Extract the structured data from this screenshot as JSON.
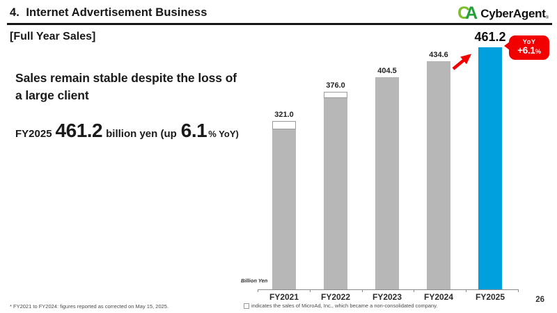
{
  "header": {
    "title": "4.  Internet Advertisement Business",
    "logo_c": "C",
    "logo_a": "A",
    "logo_text": "CyberAgent",
    "logo_reg": "®"
  },
  "left": {
    "section_label": "[Full Year Sales]",
    "headline_line1": "Sales remain stable despite the loss of",
    "headline_line2": "a large client",
    "stat": {
      "prefix": "FY2025",
      "value": "461.2",
      "mid": "billion yen (up",
      "pct": "6.1",
      "suffix": "% YoY)"
    }
  },
  "chart_data": {
    "type": "bar",
    "title": "Full Year Sales",
    "unit_label": "Billion Yen",
    "categories": [
      "FY2021",
      "FY2022",
      "FY2023",
      "FY2024",
      "FY2025"
    ],
    "values": [
      321.0,
      376.0,
      404.5,
      434.6,
      461.2
    ],
    "microad_segment_estimates": [
      16,
      12,
      0,
      0,
      0
    ],
    "highlight_index": 4,
    "ylim": [
      0,
      480
    ],
    "grid": false,
    "bar_color": "#b7b7b7",
    "highlight_color": "#009fde",
    "accent_red": "#f20000",
    "annotation": {
      "arrow_from": "FY2024",
      "arrow_to": "FY2025"
    },
    "yoy_badge": {
      "line1": "YoY",
      "value": "+6.1",
      "pct": "%"
    }
  },
  "footer": {
    "note_left": "* FY2021 to FY2024: figures reported as corrected on May 15, 2025.",
    "note_center": "indicates the sales of MicroAd, Inc., which became a non-consolidated company.",
    "page_number": "26"
  }
}
